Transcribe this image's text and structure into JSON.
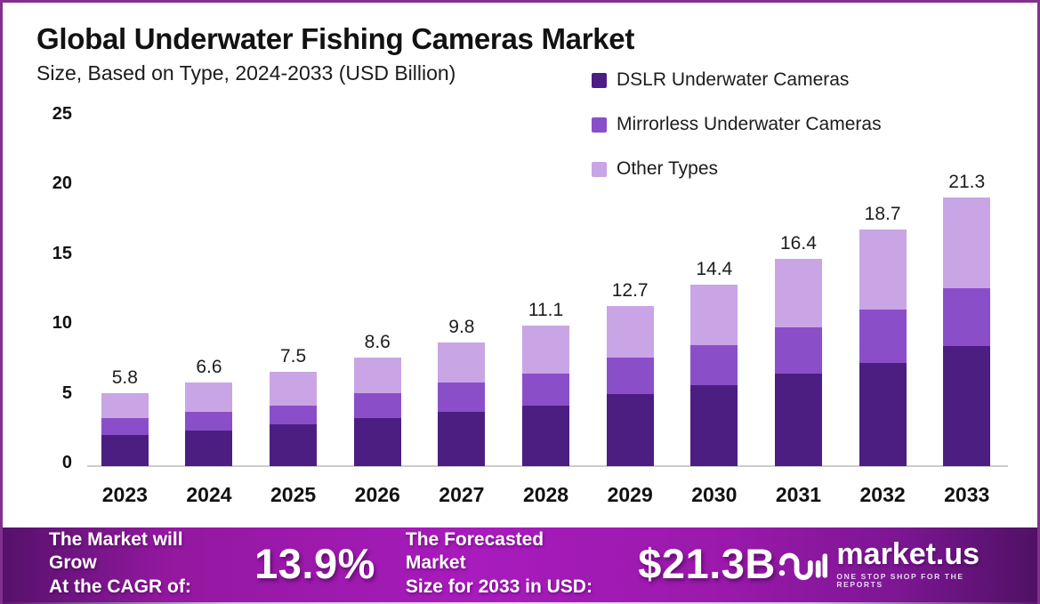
{
  "header": {
    "title": "Global Underwater Fishing Cameras Market",
    "subtitle": "Size, Based on Type, 2024-2033 (USD Billion)"
  },
  "chart_data": {
    "type": "bar",
    "stacked": true,
    "title": "Global Underwater Fishing Cameras Market Size, Based on Type, 2024-2033 (USD Billion)",
    "categories": [
      "2023",
      "2024",
      "2025",
      "2026",
      "2027",
      "2028",
      "2029",
      "2030",
      "2031",
      "2032",
      "2033"
    ],
    "series": [
      {
        "name": "DSLR Underwater Cameras",
        "color": "#4c1e82",
        "values": [
          2.5,
          2.8,
          3.3,
          3.8,
          4.3,
          4.8,
          5.7,
          6.4,
          7.3,
          8.2,
          9.5
        ]
      },
      {
        "name": "Mirrorless Underwater Cameras",
        "color": "#8a4fc8",
        "values": [
          1.3,
          1.5,
          1.5,
          2.0,
          2.3,
          2.5,
          2.9,
          3.2,
          3.7,
          4.2,
          4.6
        ]
      },
      {
        "name": "Other Types",
        "color": "#c9a5e6",
        "values": [
          2.0,
          2.3,
          2.7,
          2.8,
          3.2,
          3.8,
          4.1,
          4.8,
          5.4,
          6.3,
          7.2
        ]
      }
    ],
    "totals": [
      5.8,
      6.6,
      7.5,
      8.6,
      9.8,
      11.1,
      12.7,
      14.4,
      16.4,
      18.7,
      21.3
    ],
    "xlabel": "",
    "ylabel": "",
    "ylim": [
      0,
      25
    ],
    "yticks": [
      0,
      5,
      10,
      15,
      20,
      25
    ],
    "grid": false,
    "legend_position": "top-right",
    "unit": "USD Billion"
  },
  "footer": {
    "cagr_label_line1": "The Market will Grow",
    "cagr_label_line2": "At the CAGR of:",
    "cagr_value": "13.9%",
    "forecast_label_line1": "The Forecasted Market",
    "forecast_label_line2": "Size for 2033 in USD:",
    "forecast_value": "$21.3B",
    "brand_name": "market.us",
    "brand_tagline": "ONE STOP SHOP FOR THE REPORTS"
  },
  "colors": {
    "card_border": "#82308e",
    "footer_purple": "#a81bbd",
    "axis_line": "#cccccc",
    "text_dark": "#121212"
  }
}
